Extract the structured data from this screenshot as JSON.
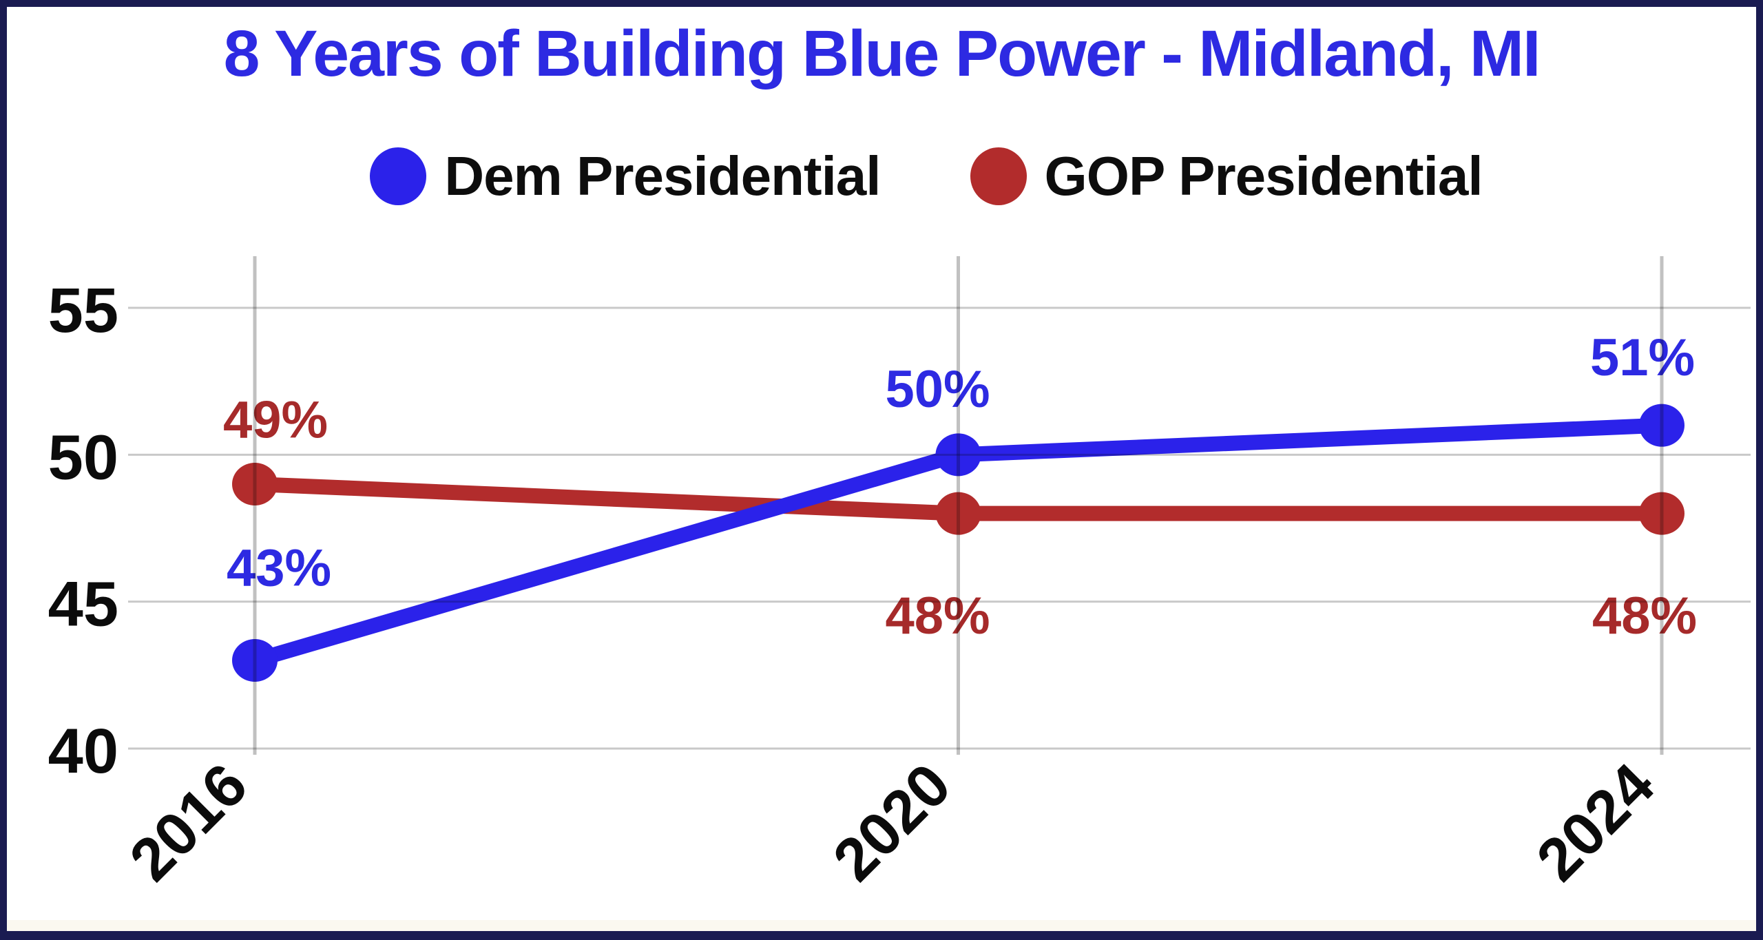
{
  "frame": {
    "border_color": "#1a1b51",
    "background_color": "#ffffff"
  },
  "title": {
    "text": "8 Years of Building Blue Power - Midland, MI",
    "color": "#2d2ae2"
  },
  "legend": {
    "position": "top",
    "items": [
      {
        "label": "Dem Presidential",
        "color": "#2b22ea"
      },
      {
        "label": "GOP Presidential",
        "color": "#b22c2c"
      }
    ]
  },
  "chart_data": {
    "type": "line",
    "title": "8 Years of Building Blue Power - Midland, MI",
    "x": [
      "2016",
      "2020",
      "2024"
    ],
    "series": [
      {
        "name": "Dem Presidential",
        "color": "#2b22ea",
        "label_color": "#2d2ae2",
        "values": [
          43,
          50,
          51
        ],
        "point_labels": [
          "43%",
          "50%",
          "51%"
        ],
        "label_offsets": [
          [
            35,
            -134
          ],
          [
            -30,
            -95
          ],
          [
            -28,
            -98
          ]
        ]
      },
      {
        "name": "GOP Presidential",
        "color": "#b22c2c",
        "label_color": "#a62a2a",
        "values": [
          49,
          48,
          48
        ],
        "point_labels": [
          "49%",
          "48%",
          "48%"
        ],
        "label_offsets": [
          [
            30,
            -93
          ],
          [
            -30,
            149
          ],
          [
            -25,
            149
          ]
        ]
      }
    ],
    "xlabel": "",
    "ylabel": "",
    "yticks": [
      40,
      45,
      50,
      55
    ],
    "ylim": [
      40,
      56.8
    ],
    "grid": true,
    "legend_position": "top",
    "axis_text_color": "#0b0b0b",
    "h_gridline_color": "#c9c9c9",
    "v_gridline_color": "#c1c1c1"
  }
}
